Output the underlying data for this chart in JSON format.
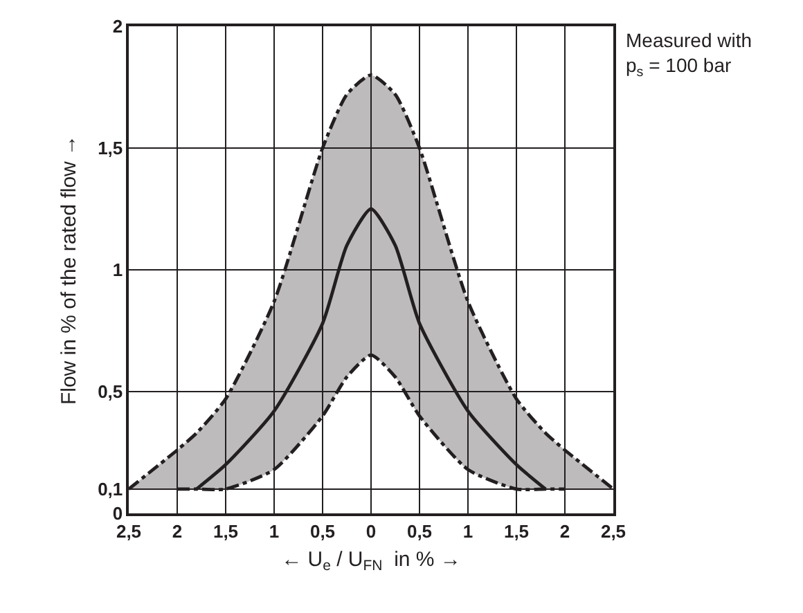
{
  "chart_data": {
    "type": "line",
    "xlabel": "← U$_{e}$ / U$_{FN}$  in % →",
    "ylabel": "Flow in % of the rated flow →",
    "annotations": [
      "Measured with\np$_{s}$ = 100 bar"
    ],
    "x": [
      -2.5,
      -2,
      -1.8,
      -1.5,
      -1,
      -0.5,
      -0.25,
      0,
      0.25,
      0.5,
      1,
      1.5,
      1.8,
      2,
      2.5
    ],
    "series": [
      {
        "color": "#231f20",
        "line_style": "dashed",
        "values": [
          null,
          0.1,
          0.1,
          0.1,
          0.18,
          0.4,
          0.56,
          0.65,
          0.56,
          0.4,
          0.18,
          0.1,
          0.1,
          0.1,
          null
        ]
      },
      {
        "color": "#231f20",
        "line_style": "dashed",
        "values": [
          0.1,
          0.26,
          0.33,
          0.47,
          0.87,
          1.5,
          1.72,
          1.8,
          1.72,
          1.5,
          0.87,
          0.47,
          0.33,
          0.26,
          0.1
        ]
      },
      {
        "color": "#231f20",
        "line_style": "solid",
        "values": [
          null,
          null,
          0.1,
          0.2,
          0.42,
          0.78,
          1.1,
          1.25,
          1.1,
          0.78,
          0.42,
          0.2,
          0.1,
          null,
          null
        ],
        "lower": [
          0.1,
          0.1,
          0.1,
          0.1,
          0.18,
          0.4,
          0.56,
          0.65,
          0.56,
          0.4,
          0.18,
          0.1,
          0.1,
          0.1,
          0.1
        ],
        "upper": [
          0.1,
          0.26,
          0.33,
          0.47,
          0.87,
          1.5,
          1.72,
          1.8,
          1.72,
          1.5,
          0.87,
          0.47,
          0.33,
          0.26,
          0.1
        ]
      }
    ],
    "xlim": [
      -2.5,
      2.5
    ],
    "xticks": [
      {
        "value": -2.5,
        "label": "2,5"
      },
      {
        "value": -2,
        "label": "2"
      },
      {
        "value": -1.5,
        "label": "1,5"
      },
      {
        "value": -1,
        "label": "1"
      },
      {
        "value": -0.5,
        "label": "0,5"
      },
      0,
      {
        "value": 0.5,
        "label": "0,5"
      },
      {
        "value": 1,
        "label": "1"
      },
      {
        "value": 1.5,
        "label": "1,5"
      },
      {
        "value": 2,
        "label": "2"
      },
      {
        "value": 2.5,
        "label": "2,5"
      }
    ],
    "ylim": [
      0,
      2
    ],
    "yticks": [
      0,
      {
        "value": 0.1,
        "label": "0,1"
      },
      {
        "value": 0.5,
        "label": "0,5"
      },
      1,
      {
        "value": 1.5,
        "label": "1,5"
      },
      2
    ],
    "grid": true,
    "marker": "none"
  }
}
